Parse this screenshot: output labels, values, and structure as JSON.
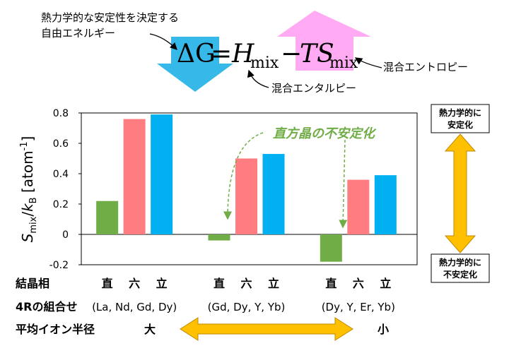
{
  "equation": {
    "lhs": "ΔG",
    "equals": "=",
    "h": "H",
    "h_sub": "mix",
    "minus": "−",
    "ts": "TS",
    "ts_sub": "mix"
  },
  "annotations": {
    "gibbs_line1": "熱力学的な安定性を決定する",
    "gibbs_line2": "自由エネルギー",
    "entropy": "混合エントロピー",
    "enthalpy": "混合エンタルピー",
    "destabilize": "直方晶の不安定化",
    "stable_line1": "熱力学的に",
    "stable_line2": "安定化",
    "unstable_line1": "熱力学的に",
    "unstable_line2": "不安定化"
  },
  "rows": {
    "phase_label": "結晶相",
    "combo_label": "4Rの組合せ",
    "radius_label": "平均イオン半径",
    "radius_large": "大",
    "radius_small": "小"
  },
  "chart_data": {
    "type": "bar",
    "ylabel": "S_mix/k_B [atom⁻¹]",
    "ylim": [
      -0.2,
      0.8
    ],
    "yticks": [
      "-0.2",
      "0",
      "0.2",
      "0.4",
      "0.6",
      "0.8"
    ],
    "tick_values": [
      -0.2,
      0,
      0.2,
      0.4,
      0.6,
      0.8
    ],
    "phase_labels": [
      "直",
      "六",
      "立"
    ],
    "colors": [
      "#70ad47",
      "#ff7c80",
      "#00b0f0"
    ],
    "groups": [
      {
        "combo": "(La, Nd, Gd, Dy)",
        "values": [
          0.22,
          0.76,
          0.79
        ]
      },
      {
        "combo": "(Gd, Dy, Y, Yb)",
        "values": [
          -0.04,
          0.5,
          0.53
        ]
      },
      {
        "combo": "(Dy, Y, Er, Yb)",
        "values": [
          -0.18,
          0.36,
          0.39
        ]
      }
    ]
  }
}
